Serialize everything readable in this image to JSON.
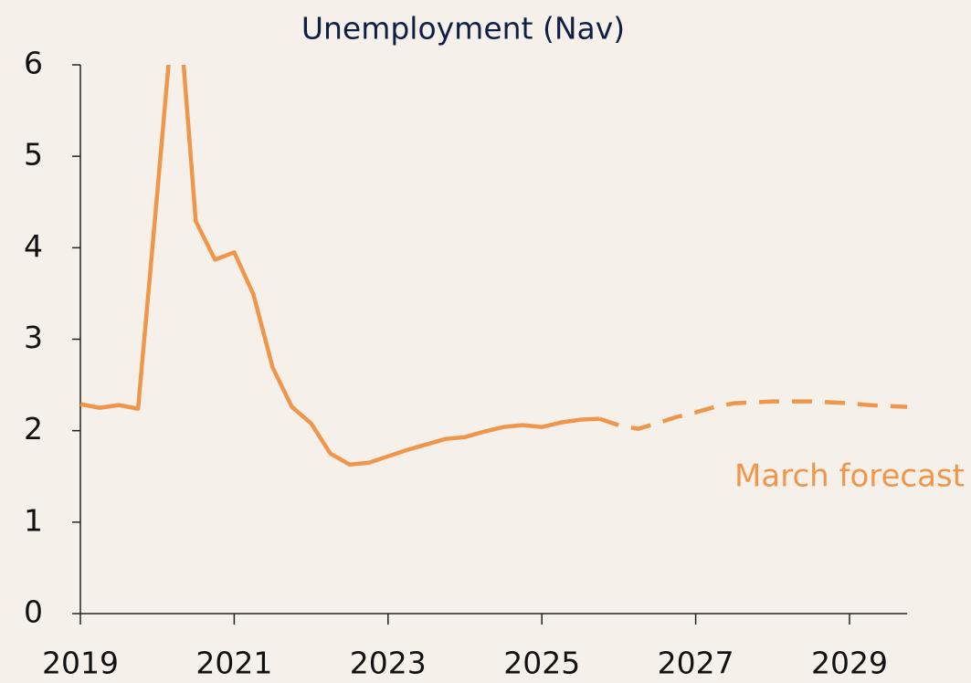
{
  "chart_data": {
    "type": "line",
    "title": "Unemployment (Nav)",
    "xlim": [
      2019,
      2029.75
    ],
    "xticks": [
      2019,
      2021,
      2023,
      2025,
      2027,
      2029
    ],
    "ylim": [
      0,
      6
    ],
    "yticks": [
      0,
      1,
      2,
      3,
      4,
      5,
      6
    ],
    "series": [
      {
        "color": "#f0964a",
        "dash": false,
        "x": [
          2019,
          2019.25,
          2019.5,
          2019.75,
          2020,
          2020.25,
          2020.5,
          2020.75,
          2021,
          2021.25,
          2021.5,
          2021.75,
          2022,
          2022.25,
          2022.5,
          2022.75,
          2023,
          2023.25,
          2023.5,
          2023.75,
          2024,
          2024.25,
          2024.5,
          2024.75,
          2025,
          2025.25,
          2025.5,
          2025.75
        ],
        "values": [
          2.29,
          2.25,
          2.28,
          2.24,
          4.6,
          7.0,
          4.29,
          3.87,
          3.95,
          3.49,
          2.69,
          2.26,
          2.08,
          1.75,
          1.63,
          1.65,
          1.72,
          1.79,
          1.85,
          1.91,
          1.93,
          1.99,
          2.04,
          2.06,
          2.04,
          2.09,
          2.12,
          2.13
        ]
      },
      {
        "name": "March forecast",
        "color": "#f0964a",
        "dash": true,
        "x": [
          2025.75,
          2026,
          2026.25,
          2026.5,
          2026.75,
          2027,
          2027.25,
          2027.5,
          2027.75,
          2028,
          2028.25,
          2028.5,
          2028.75,
          2029,
          2029.25,
          2029.5,
          2029.75
        ],
        "values": [
          2.13,
          2.06,
          2.02,
          2.08,
          2.15,
          2.2,
          2.26,
          2.3,
          2.31,
          2.32,
          2.32,
          2.32,
          2.31,
          2.3,
          2.28,
          2.27,
          2.26
        ]
      }
    ]
  }
}
